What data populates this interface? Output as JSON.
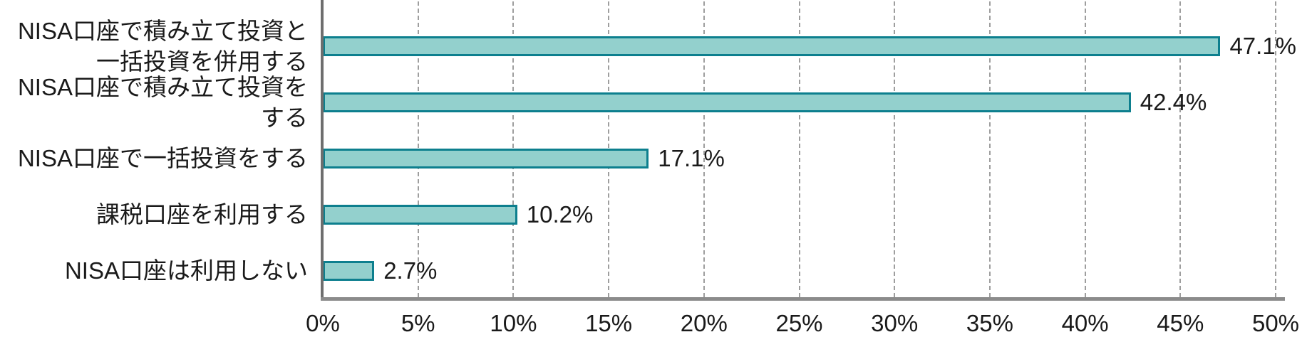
{
  "chart_data": {
    "type": "bar",
    "orientation": "horizontal",
    "title": "",
    "xlabel": "",
    "ylabel": "",
    "categories": [
      "NISA口座で積み立て投資と\n一括投資を併用する",
      "NISA口座で積み立て投資をする",
      "NISA口座で一括投資をする",
      "課税口座を利用する",
      "NISA口座は利用しない"
    ],
    "values": [
      47.1,
      42.4,
      17.1,
      10.2,
      2.7
    ],
    "value_labels": [
      "47.1%",
      "42.4%",
      "17.1%",
      "10.2%",
      "2.7%"
    ],
    "xlim": [
      0,
      50
    ],
    "x_tick_values": [
      0,
      5,
      10,
      15,
      20,
      25,
      30,
      35,
      40,
      45,
      50
    ],
    "x_ticks": [
      "0%",
      "5%",
      "10%",
      "15%",
      "20%",
      "25%",
      "30%",
      "35%",
      "40%",
      "45%",
      "50%"
    ],
    "grid": "vertical-dashed",
    "legend": "none",
    "colors": {
      "bar_fill": "#93d0cd",
      "bar_border": "#0d7f8e",
      "axis_line": "#6e6e6e",
      "gridline": "#9e9e9e",
      "text": "#1a1a1a"
    }
  }
}
